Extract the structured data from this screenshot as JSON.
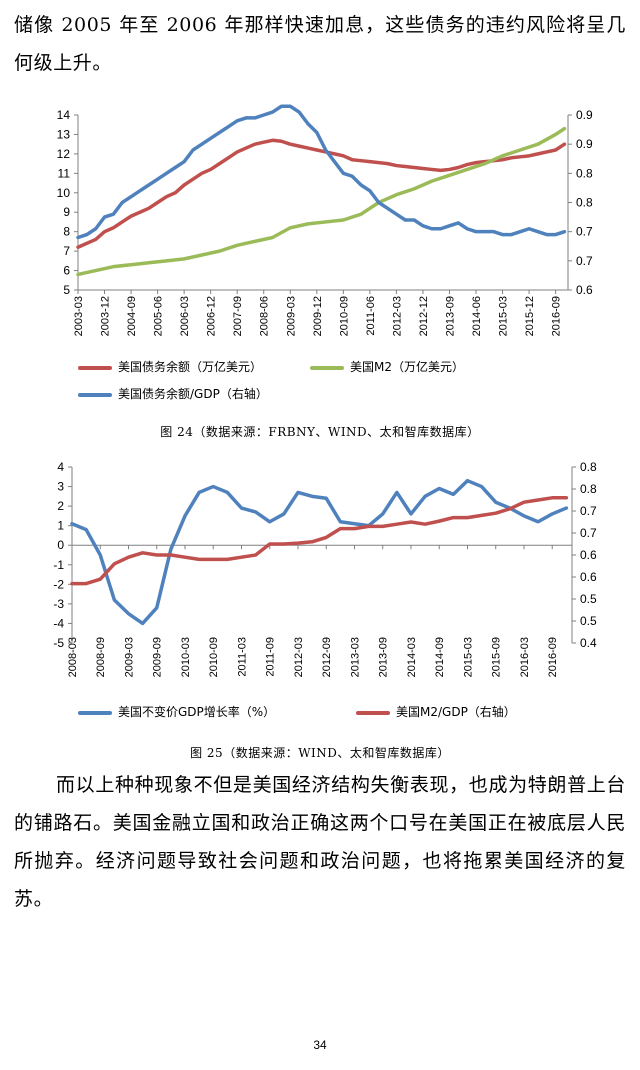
{
  "text": {
    "intro": "储像 2005 年至 2006 年那样快速加息，这些债务的违约风险将呈几何级上升。",
    "body": "而以上种种现象不但是美国经济结构失衡表现，也成为特朗普上台的铺路石。美国金融立国和政治正确这两个口号在美国正在被底层人民所抛弃。经济问题导致社会问题和政治问题，也将拖累美国经济的复苏。",
    "page_number": "34"
  },
  "figures": {
    "fig24_caption": "图 24（数据来源：FRBNY、WIND、太和智库数据库）",
    "fig25_caption": "图 25（数据来源：WIND、太和智库数据库）"
  },
  "colors": {
    "red": "#C0504D",
    "green": "#9BBB59",
    "blue": "#4F81BD",
    "axis": "#808080"
  },
  "chart_data": [
    {
      "type": "line",
      "title": "",
      "xlabel": "",
      "ylabel": "",
      "categories": [
        "2003-03",
        "2003-12",
        "2004-09",
        "2005-06",
        "2006-03",
        "2006-12",
        "2007-09",
        "2008-06",
        "2009-03",
        "2009-12",
        "2010-09",
        "2011-06",
        "2012-03",
        "2012-12",
        "2013-09",
        "2014-06",
        "2015-03",
        "2015-12",
        "2016-09"
      ],
      "y_left": {
        "min": 5,
        "max": 14,
        "ticks": [
          5,
          6,
          7,
          8,
          9,
          10,
          11,
          12,
          13,
          14
        ]
      },
      "y_right": {
        "min": 0.6,
        "max": 0.9,
        "ticks": [
          0.6,
          0.65,
          0.7,
          0.75,
          0.8,
          0.85,
          0.9
        ],
        "tick_labels": [
          "0.6",
          "0.7",
          "0.7",
          "0.8",
          "0.8",
          "0.9",
          "0.9"
        ]
      },
      "legend": [
        "美国债务余额（万亿美元）",
        "美国M2（万亿美元）",
        "美国债务余额/GDP（右轴）"
      ],
      "series": [
        {
          "name": "美国债务余额（万亿美元）",
          "axis": "left",
          "color": "#C0504D",
          "x": [
            2003.0,
            2003.25,
            2003.5,
            2003.75,
            2004.0,
            2004.25,
            2004.5,
            2004.75,
            2005.0,
            2005.25,
            2005.5,
            2005.75,
            2006.0,
            2006.25,
            2006.5,
            2006.75,
            2007.0,
            2007.25,
            2007.5,
            2007.75,
            2008.0,
            2008.25,
            2008.5,
            2008.75,
            2009.0,
            2009.25,
            2009.5,
            2009.75,
            2010.0,
            2010.25,
            2010.5,
            2010.75,
            2011.0,
            2011.25,
            2011.5,
            2011.75,
            2012.0,
            2012.25,
            2012.5,
            2012.75,
            2013.0,
            2013.25,
            2013.5,
            2013.75,
            2014.0,
            2014.25,
            2014.5,
            2014.75,
            2015.0,
            2015.25,
            2015.5,
            2015.75,
            2016.0,
            2016.25,
            2016.5,
            2016.75
          ],
          "values": [
            7.2,
            7.4,
            7.6,
            8.0,
            8.2,
            8.5,
            8.8,
            9.0,
            9.2,
            9.5,
            9.8,
            10.0,
            10.4,
            10.7,
            11.0,
            11.2,
            11.5,
            11.8,
            12.1,
            12.3,
            12.5,
            12.6,
            12.7,
            12.65,
            12.5,
            12.4,
            12.3,
            12.2,
            12.1,
            12.0,
            11.9,
            11.7,
            11.65,
            11.6,
            11.55,
            11.5,
            11.4,
            11.35,
            11.3,
            11.25,
            11.2,
            11.15,
            11.2,
            11.3,
            11.45,
            11.55,
            11.6,
            11.65,
            11.7,
            11.8,
            11.85,
            11.9,
            12.0,
            12.1,
            12.2,
            12.5
          ]
        },
        {
          "name": "美国M2（万亿美元）",
          "axis": "left",
          "color": "#9BBB59",
          "x": [
            2003.0,
            2003.5,
            2004.0,
            2004.5,
            2005.0,
            2005.5,
            2006.0,
            2006.5,
            2007.0,
            2007.5,
            2008.0,
            2008.5,
            2009.0,
            2009.5,
            2010.0,
            2010.5,
            2011.0,
            2011.5,
            2012.0,
            2012.5,
            2013.0,
            2013.5,
            2014.0,
            2014.5,
            2015.0,
            2015.5,
            2016.0,
            2016.5,
            2016.75
          ],
          "values": [
            5.8,
            6.0,
            6.2,
            6.3,
            6.4,
            6.5,
            6.6,
            6.8,
            7.0,
            7.3,
            7.5,
            7.7,
            8.2,
            8.4,
            8.5,
            8.6,
            8.9,
            9.5,
            9.9,
            10.2,
            10.6,
            10.9,
            11.2,
            11.5,
            11.9,
            12.2,
            12.5,
            13.0,
            13.3
          ]
        },
        {
          "name": "美国债务余额/GDP（右轴）",
          "axis": "right",
          "color": "#4F81BD",
          "x": [
            2003.0,
            2003.25,
            2003.5,
            2003.75,
            2004.0,
            2004.25,
            2004.5,
            2004.75,
            2005.0,
            2005.25,
            2005.5,
            2005.75,
            2006.0,
            2006.25,
            2006.5,
            2006.75,
            2007.0,
            2007.25,
            2007.5,
            2007.75,
            2008.0,
            2008.25,
            2008.5,
            2008.75,
            2009.0,
            2009.25,
            2009.5,
            2009.75,
            2010.0,
            2010.25,
            2010.5,
            2010.75,
            2011.0,
            2011.25,
            2011.5,
            2011.75,
            2012.0,
            2012.25,
            2012.5,
            2012.75,
            2013.0,
            2013.25,
            2013.5,
            2013.75,
            2014.0,
            2014.25,
            2014.5,
            2014.75,
            2015.0,
            2015.25,
            2015.5,
            2015.75,
            2016.0,
            2016.25,
            2016.5,
            2016.75
          ],
          "values": [
            0.69,
            0.695,
            0.705,
            0.725,
            0.73,
            0.75,
            0.76,
            0.77,
            0.78,
            0.79,
            0.8,
            0.81,
            0.82,
            0.84,
            0.85,
            0.86,
            0.87,
            0.88,
            0.89,
            0.895,
            0.895,
            0.9,
            0.905,
            0.915,
            0.915,
            0.905,
            0.885,
            0.87,
            0.84,
            0.82,
            0.8,
            0.795,
            0.78,
            0.77,
            0.75,
            0.74,
            0.73,
            0.72,
            0.72,
            0.71,
            0.705,
            0.705,
            0.71,
            0.715,
            0.705,
            0.7,
            0.7,
            0.7,
            0.695,
            0.695,
            0.7,
            0.705,
            0.7,
            0.695,
            0.695,
            0.7
          ]
        }
      ]
    },
    {
      "type": "line",
      "title": "",
      "xlabel": "",
      "ylabel": "",
      "categories": [
        "2008-03",
        "2008-09",
        "2009-03",
        "2009-09",
        "2010-03",
        "2010-09",
        "2011-03",
        "2011-09",
        "2012-03",
        "2012-09",
        "2013-03",
        "2013-09",
        "2014-03",
        "2014-09",
        "2015-03",
        "2015-09",
        "2016-03",
        "2016-09"
      ],
      "y_left": {
        "min": -5,
        "max": 4,
        "ticks": [
          -5,
          -4,
          -3,
          -2,
          -1,
          0,
          1,
          2,
          3,
          4
        ]
      },
      "y_right": {
        "min": 0.4,
        "max": 0.8,
        "ticks": [
          0.4,
          0.45,
          0.5,
          0.55,
          0.6,
          0.65,
          0.7,
          0.75,
          0.8
        ],
        "tick_labels": [
          "0.4",
          "0.5",
          "0.5",
          "0.6",
          "0.6",
          "0.7",
          "0.7",
          "0.8",
          "0.8"
        ]
      },
      "legend": [
        "美国不变价GDP增长率（%）",
        "美国M2/GDP（右轴）"
      ],
      "series": [
        {
          "name": "美国不变价GDP增长率（%）",
          "axis": "left",
          "color": "#4F81BD",
          "x": [
            2008.0,
            2008.25,
            2008.5,
            2008.75,
            2009.0,
            2009.25,
            2009.5,
            2009.75,
            2010.0,
            2010.25,
            2010.5,
            2010.75,
            2011.0,
            2011.25,
            2011.5,
            2011.75,
            2012.0,
            2012.25,
            2012.5,
            2012.75,
            2013.0,
            2013.25,
            2013.5,
            2013.75,
            2014.0,
            2014.25,
            2014.5,
            2014.75,
            2015.0,
            2015.25,
            2015.5,
            2015.75,
            2016.0,
            2016.25,
            2016.5,
            2016.75
          ],
          "values": [
            1.1,
            0.8,
            -0.5,
            -2.8,
            -3.5,
            -4.0,
            -3.2,
            -0.2,
            1.5,
            2.7,
            3.0,
            2.7,
            1.9,
            1.7,
            1.2,
            1.6,
            2.7,
            2.5,
            2.4,
            1.2,
            1.1,
            1.0,
            1.6,
            2.7,
            1.6,
            2.5,
            2.9,
            2.6,
            3.3,
            3.0,
            2.2,
            1.9,
            1.5,
            1.2,
            1.6,
            1.9
          ]
        },
        {
          "name": "美国M2/GDP（右轴）",
          "axis": "right",
          "color": "#C0504D",
          "x": [
            2008.0,
            2008.25,
            2008.5,
            2008.75,
            2009.0,
            2009.25,
            2009.5,
            2009.75,
            2010.0,
            2010.25,
            2010.5,
            2010.75,
            2011.0,
            2011.25,
            2011.5,
            2011.75,
            2012.0,
            2012.25,
            2012.5,
            2012.75,
            2013.0,
            2013.25,
            2013.5,
            2013.75,
            2014.0,
            2014.25,
            2014.5,
            2014.75,
            2015.0,
            2015.25,
            2015.5,
            2015.75,
            2016.0,
            2016.25,
            2016.5,
            2016.75
          ],
          "values": [
            0.535,
            0.535,
            0.545,
            0.58,
            0.595,
            0.605,
            0.6,
            0.6,
            0.595,
            0.59,
            0.59,
            0.59,
            0.595,
            0.6,
            0.625,
            0.625,
            0.627,
            0.63,
            0.64,
            0.66,
            0.66,
            0.665,
            0.665,
            0.67,
            0.675,
            0.67,
            0.677,
            0.685,
            0.685,
            0.69,
            0.695,
            0.705,
            0.72,
            0.725,
            0.73,
            0.73
          ]
        }
      ]
    }
  ]
}
